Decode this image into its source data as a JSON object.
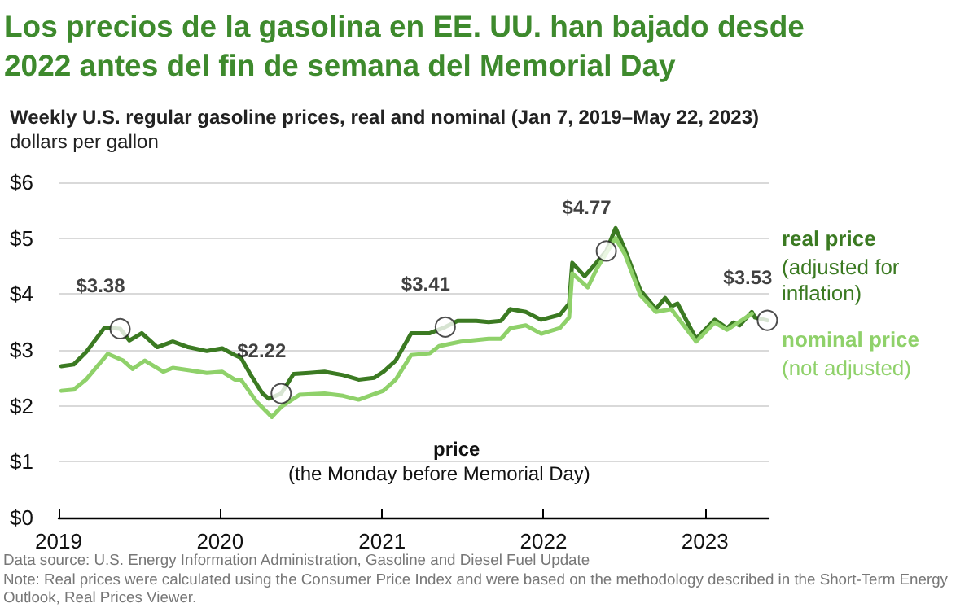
{
  "chart_data": {
    "type": "line",
    "title": "Los precios de la gasolina en EE. UU. han bajado desde 2022 antes del fin de semana del Memorial Day",
    "subtitle": "Weekly U.S. regular gasoline prices, real and nominal (Jan 7, 2019–May 22, 2023)",
    "ylabel": "dollars per gallon",
    "annotations": [
      "(adjusted for inflation)",
      "(not adjusted)",
      "price",
      "(the Monday before Memorial Day)",
      "Data source: U.S. Energy Information Administration, Gasoline and Diesel Fuel Update",
      "Note: Real prices were calculated using the Consumer Price Index and were based on the methodology described in the Short-Term Energy Outlook, Real Prices Viewer."
    ],
    "series": [
      {
        "name": "real price",
        "color": "#3b7a22",
        "x": [
          "2019-01-07",
          "2019-02-04",
          "2019-03-04",
          "2019-04-15",
          "2019-05-20",
          "2019-06-10",
          "2019-07-08",
          "2019-08-12",
          "2019-09-16",
          "2019-10-21",
          "2019-12-02",
          "2020-01-06",
          "2020-02-03",
          "2020-02-17",
          "2020-03-09",
          "2020-04-06",
          "2020-04-20",
          "2020-05-18",
          "2020-06-15",
          "2020-07-20",
          "2020-08-24",
          "2020-10-05",
          "2020-11-09",
          "2020-12-14",
          "2021-01-04",
          "2021-02-01",
          "2021-03-08",
          "2021-04-19",
          "2021-05-24",
          "2021-06-21",
          "2021-08-02",
          "2021-08-30",
          "2021-09-27",
          "2021-10-18",
          "2021-11-22",
          "2021-12-27",
          "2022-02-07",
          "2022-02-28",
          "2022-03-07",
          "2022-04-04",
          "2022-04-25",
          "2022-05-23",
          "2022-06-13",
          "2022-07-04",
          "2022-08-08",
          "2022-09-12",
          "2022-10-03",
          "2022-10-17",
          "2022-10-31",
          "2022-12-12",
          "2023-01-23",
          "2023-02-20",
          "2023-03-06",
          "2023-03-20",
          "2023-04-17",
          "2023-04-24",
          "2023-05-22"
        ],
        "values": [
          2.71,
          2.74,
          2.96,
          3.4,
          3.38,
          3.17,
          3.3,
          3.05,
          3.15,
          3.05,
          2.98,
          3.03,
          2.91,
          2.86,
          2.57,
          2.22,
          2.13,
          2.22,
          2.57,
          2.59,
          2.61,
          2.55,
          2.47,
          2.5,
          2.61,
          2.81,
          3.3,
          3.3,
          3.41,
          3.52,
          3.52,
          3.5,
          3.52,
          3.73,
          3.68,
          3.54,
          3.63,
          3.83,
          4.56,
          4.32,
          4.51,
          4.77,
          5.18,
          4.8,
          4.07,
          3.73,
          3.93,
          3.78,
          3.83,
          3.2,
          3.54,
          3.39,
          3.49,
          3.44,
          3.68,
          3.58,
          3.53
        ]
      },
      {
        "name": "nominal price",
        "color": "#8fd16a",
        "x": [
          "2019-01-07",
          "2019-02-04",
          "2019-03-04",
          "2019-04-22",
          "2019-05-27",
          "2019-06-17",
          "2019-07-15",
          "2019-08-26",
          "2019-09-16",
          "2019-10-21",
          "2019-12-02",
          "2020-01-06",
          "2020-02-03",
          "2020-02-17",
          "2020-03-23",
          "2020-04-27",
          "2020-05-18",
          "2020-06-29",
          "2020-08-24",
          "2020-10-05",
          "2020-11-09",
          "2021-01-04",
          "2021-02-01",
          "2021-03-08",
          "2021-04-19",
          "2021-05-10",
          "2021-06-28",
          "2021-08-30",
          "2021-09-27",
          "2021-10-18",
          "2021-11-22",
          "2021-12-27",
          "2022-02-07",
          "2022-02-28",
          "2022-03-07",
          "2022-04-11",
          "2022-05-02",
          "2022-06-13",
          "2022-07-04",
          "2022-08-08",
          "2022-09-12",
          "2022-10-17",
          "2022-12-12",
          "2023-01-23",
          "2023-02-20",
          "2023-04-17"
        ],
        "values": [
          2.27,
          2.29,
          2.47,
          2.93,
          2.81,
          2.66,
          2.81,
          2.61,
          2.68,
          2.64,
          2.59,
          2.61,
          2.47,
          2.47,
          2.08,
          1.8,
          1.98,
          2.2,
          2.22,
          2.18,
          2.11,
          2.27,
          2.47,
          2.91,
          2.94,
          3.07,
          3.15,
          3.2,
          3.2,
          3.39,
          3.44,
          3.29,
          3.39,
          3.58,
          4.37,
          4.12,
          4.46,
          5.0,
          4.71,
          3.98,
          3.68,
          3.73,
          3.15,
          3.49,
          3.36,
          3.65
        ]
      },
      {
        "type": "scatter",
        "color": "#ffffff",
        "marker": "circle",
        "x": [
          "2019-05-20",
          "2020-05-18",
          "2021-05-24",
          "2022-05-23",
          "2023-05-22"
        ],
        "values": [
          3.38,
          2.22,
          3.41,
          4.77,
          3.53
        ],
        "value_labels": [
          "$3.38",
          "$2.22",
          "$3.41",
          "$4.77",
          "$3.53"
        ]
      }
    ],
    "xlim": [
      "2019-01-01",
      "2023-05-25"
    ],
    "xticks": [
      {
        "value": "2019-01-01",
        "label": "2019"
      },
      {
        "value": "2020-01-01",
        "label": "2020"
      },
      {
        "value": "2021-01-01",
        "label": "2021"
      },
      {
        "value": "2022-01-01",
        "label": "2022"
      },
      {
        "value": "2023-01-01",
        "label": "2023"
      }
    ],
    "ylim": [
      0,
      6
    ],
    "yticks": [
      {
        "value": 0,
        "label": "$0"
      },
      {
        "value": 1,
        "label": "$1"
      },
      {
        "value": 2,
        "label": "$2"
      },
      {
        "value": 3,
        "label": "$3"
      },
      {
        "value": 4,
        "label": "$4"
      },
      {
        "value": 5,
        "label": "$5"
      },
      {
        "value": 6,
        "label": "$6"
      }
    ],
    "grid": "y",
    "legend": "right",
    "marker": "none",
    "line_style": "solid"
  }
}
